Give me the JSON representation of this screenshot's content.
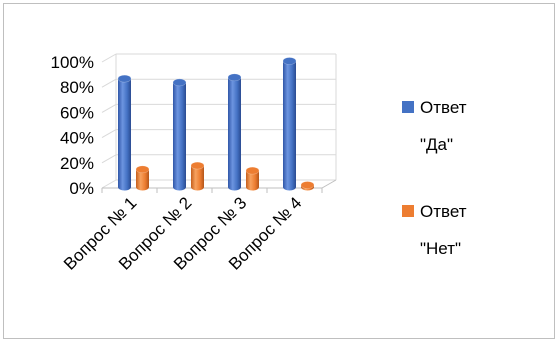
{
  "chart_data": {
    "type": "bar",
    "subtype": "3d-clustered-cylinder",
    "categories": [
      "Вопрос № 1",
      "Вопрос № 2",
      "Вопрос № 3",
      "Вопрос № 4"
    ],
    "series": [
      {
        "name": "Ответ \"Да\"",
        "values": [
          86,
          83,
          87,
          100
        ],
        "color": "#4472C4"
      },
      {
        "name": "Ответ \"Нет\"",
        "values": [
          14,
          17,
          13,
          1
        ],
        "color": "#ED7D31"
      }
    ],
    "ylim": [
      0,
      100
    ],
    "yticks": [
      "0%",
      "20%",
      "40%",
      "60%",
      "80%",
      "100%"
    ],
    "ytick_values": [
      0,
      20,
      40,
      60,
      80,
      100
    ],
    "grid": true,
    "legend_position": "right",
    "legend": [
      {
        "line1": "Ответ",
        "line2": "\"Да\"",
        "color": "#4472C4"
      },
      {
        "line1": "Ответ",
        "line2": "\"Нет\"",
        "color": "#ED7D31"
      }
    ]
  }
}
